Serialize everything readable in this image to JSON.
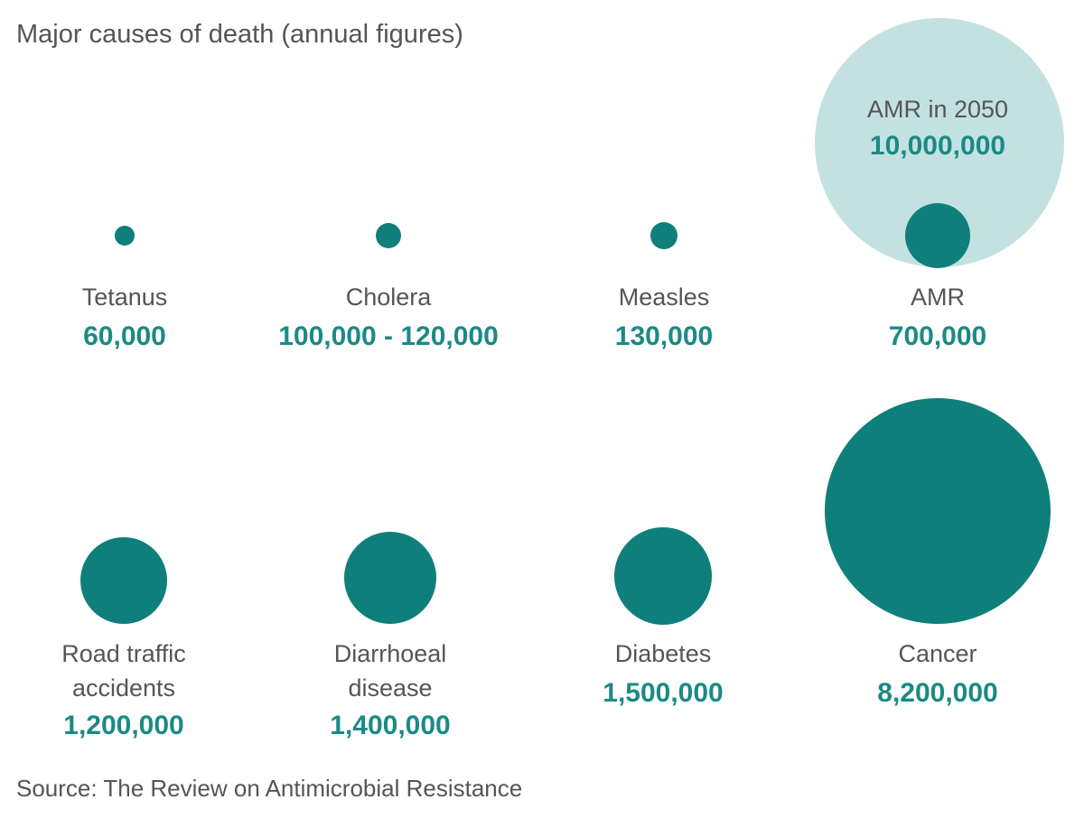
{
  "chart_data": {
    "type": "bubble",
    "title": "Major causes of death (annual figures)",
    "source": "Source: The Review on Antimicrobial Resistance",
    "colors": {
      "bubble": "#0f7f7b",
      "future_bubble": "#c4e1e2",
      "value_text": "#1b8a85",
      "label_text": "#555555"
    },
    "items": [
      {
        "name_lines": [
          "Tetanus"
        ],
        "value_label": "60,000",
        "value": 60000
      },
      {
        "name_lines": [
          "Cholera"
        ],
        "value_label": "100,000 - 120,000",
        "value": 110000
      },
      {
        "name_lines": [
          "Measles"
        ],
        "value_label": "130,000",
        "value": 130000
      },
      {
        "name_lines": [
          "AMR"
        ],
        "value_label": "700,000",
        "value": 700000
      },
      {
        "name_lines": [
          "Road traffic",
          "accidents"
        ],
        "value_label": "1,200,000",
        "value": 1200000
      },
      {
        "name_lines": [
          "Diarrhoeal",
          "disease"
        ],
        "value_label": "1,400,000",
        "value": 1400000
      },
      {
        "name_lines": [
          "Diabetes"
        ],
        "value_label": "1,500,000",
        "value": 1500000
      },
      {
        "name_lines": [
          "Cancer"
        ],
        "value_label": "8,200,000",
        "value": 8200000
      }
    ],
    "future": {
      "name_lines": [
        "AMR in 2050"
      ],
      "value_label": "10,000,000",
      "value": 10000000
    }
  }
}
